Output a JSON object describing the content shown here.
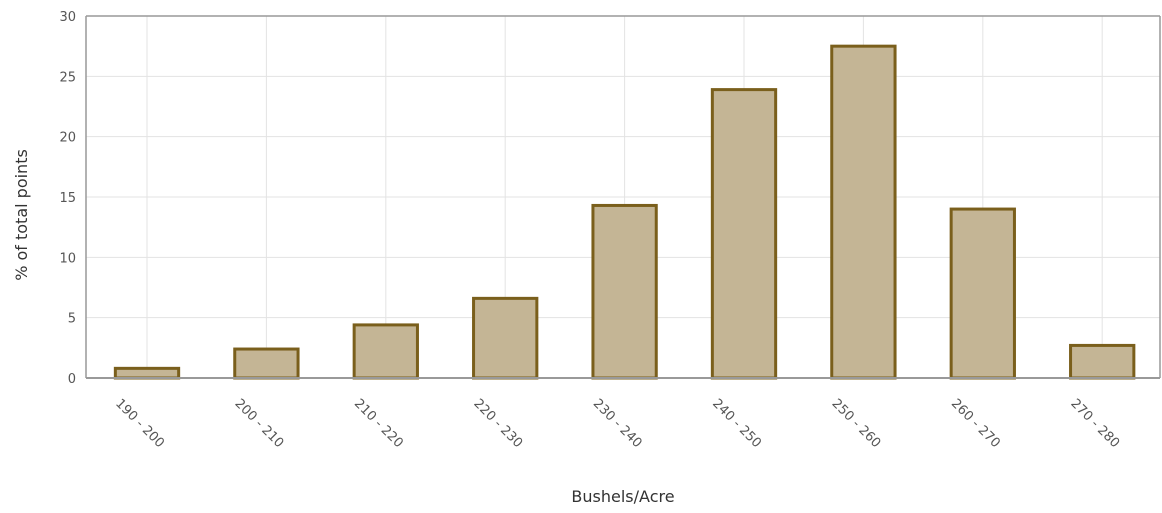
{
  "chart_data": {
    "type": "bar",
    "title": "",
    "xlabel": "Bushels/Acre",
    "ylabel": "% of total points",
    "categories": [
      "190 - 200",
      "200 - 210",
      "210 - 220",
      "220 - 230",
      "230 - 240",
      "240 - 250",
      "250 - 260",
      "260 - 270",
      "270 - 280"
    ],
    "values": [
      0.8,
      2.4,
      4.4,
      6.6,
      14.3,
      23.9,
      27.5,
      14.0,
      2.7
    ],
    "ylim": [
      0,
      30
    ],
    "yticks": [
      "0",
      "5",
      "10",
      "15",
      "20",
      "25",
      "30"
    ],
    "grid": true,
    "legend": "none",
    "colors": {
      "bar_fill": "#c4b595",
      "bar_stroke": "#7a5f1c",
      "grid": "#e3e3e3",
      "axis": "#999999"
    }
  }
}
